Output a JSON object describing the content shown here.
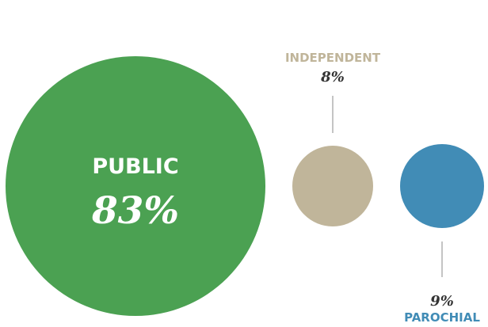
{
  "chart_data": {
    "type": "bubble",
    "title": "",
    "items": [
      {
        "category": "PUBLIC",
        "value": 83,
        "label": "83%",
        "color": "#4ba152"
      },
      {
        "category": "INDEPENDENT",
        "value": 8,
        "label": "8%",
        "color": "#c0b59a"
      },
      {
        "category": "PAROCHIAL",
        "value": 9,
        "label": "9%",
        "color": "#418cb6"
      }
    ]
  }
}
